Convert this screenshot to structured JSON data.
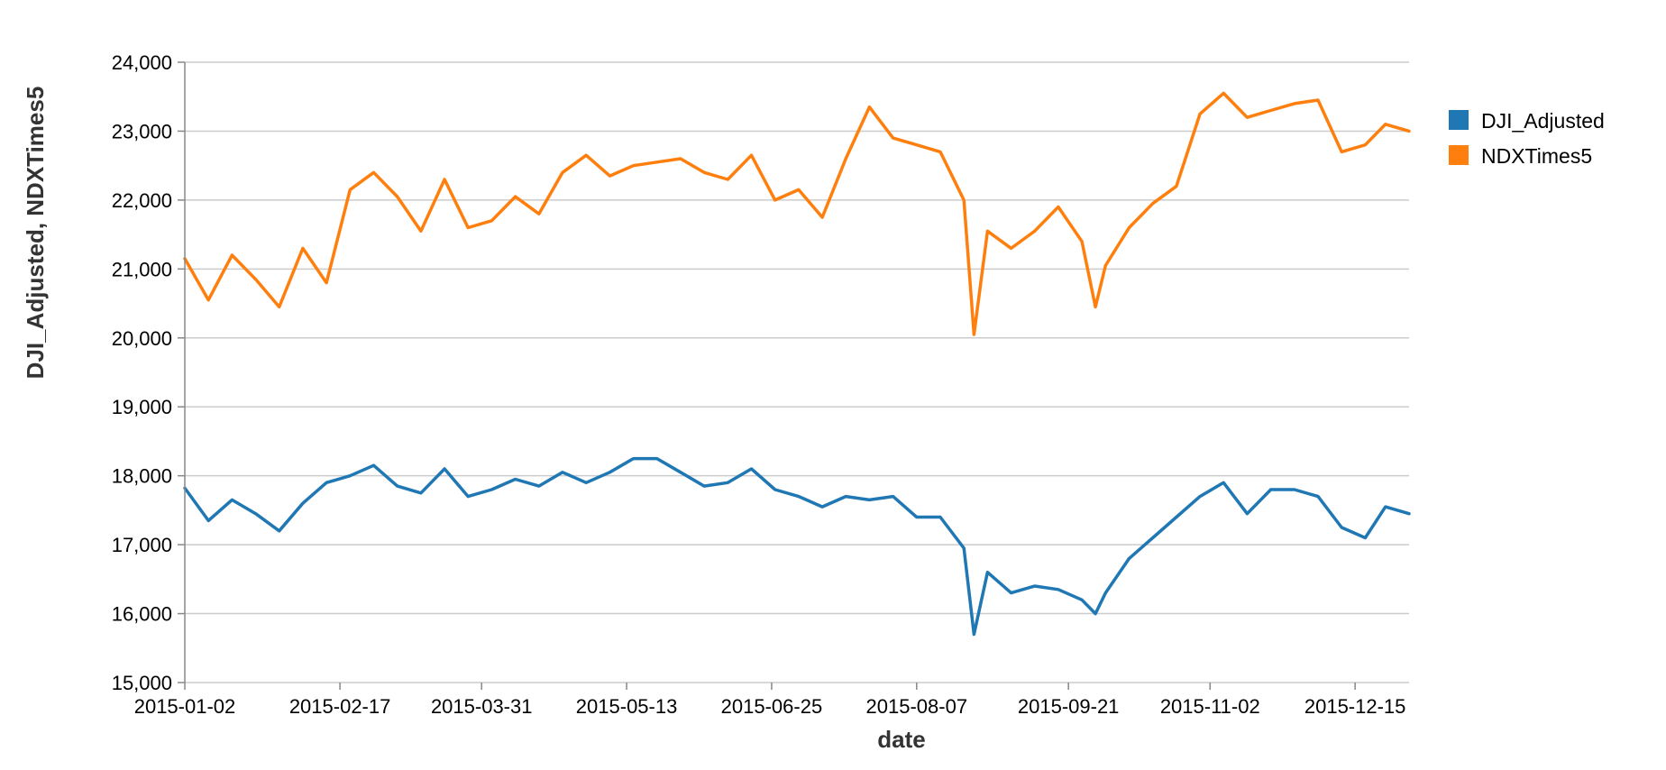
{
  "chart_data": {
    "type": "line",
    "xlabel": "date",
    "ylabel": "DJI_Adjusted, NDXTimes5",
    "ylim": [
      15000,
      24000
    ],
    "y_ticks": [
      15000,
      16000,
      17000,
      18000,
      19000,
      20000,
      21000,
      22000,
      23000,
      24000
    ],
    "y_tick_labels": [
      "15,000",
      "16,000",
      "17,000",
      "18,000",
      "19,000",
      "20,000",
      "21,000",
      "22,000",
      "23,000",
      "24,000"
    ],
    "x_tick_labels": [
      "2015-01-02",
      "2015-02-17",
      "2015-03-31",
      "2015-05-13",
      "2015-06-25",
      "2015-08-07",
      "2015-09-21",
      "2015-11-02",
      "2015-12-15"
    ],
    "grid": true,
    "legend_position": "right",
    "x": [
      "2015-01-02",
      "2015-01-09",
      "2015-01-16",
      "2015-01-23",
      "2015-01-30",
      "2015-02-06",
      "2015-02-13",
      "2015-02-20",
      "2015-02-27",
      "2015-03-06",
      "2015-03-13",
      "2015-03-20",
      "2015-03-27",
      "2015-04-03",
      "2015-04-10",
      "2015-04-17",
      "2015-04-24",
      "2015-05-01",
      "2015-05-08",
      "2015-05-15",
      "2015-05-22",
      "2015-05-29",
      "2015-06-05",
      "2015-06-12",
      "2015-06-19",
      "2015-06-26",
      "2015-07-03",
      "2015-07-10",
      "2015-07-17",
      "2015-07-24",
      "2015-07-31",
      "2015-08-07",
      "2015-08-14",
      "2015-08-21",
      "2015-08-24",
      "2015-08-28",
      "2015-09-04",
      "2015-09-11",
      "2015-09-18",
      "2015-09-25",
      "2015-09-29",
      "2015-10-02",
      "2015-10-09",
      "2015-10-16",
      "2015-10-23",
      "2015-10-30",
      "2015-11-06",
      "2015-11-13",
      "2015-11-20",
      "2015-11-27",
      "2015-12-04",
      "2015-12-11",
      "2015-12-18",
      "2015-12-24",
      "2015-12-31"
    ],
    "series": [
      {
        "name": "DJI_Adjusted",
        "color": "#1f77b4",
        "values": [
          17820,
          17350,
          17650,
          17450,
          17200,
          17600,
          17900,
          18000,
          18150,
          17850,
          17750,
          18100,
          17700,
          17800,
          17950,
          17850,
          18050,
          17900,
          18050,
          18250,
          18250,
          18050,
          17850,
          17900,
          18100,
          17800,
          17700,
          17550,
          17700,
          17650,
          17700,
          17400,
          17400,
          16950,
          15700,
          16600,
          16300,
          16400,
          16350,
          16200,
          16000,
          16300,
          16800,
          17100,
          17400,
          17700,
          17900,
          17450,
          17800,
          17800,
          17700,
          17250,
          17100,
          17550,
          17450
        ]
      },
      {
        "name": "NDXTimes5",
        "color": "#ff7f0e",
        "values": [
          21150,
          20550,
          21200,
          20850,
          20450,
          21300,
          20800,
          22150,
          22400,
          22050,
          21550,
          22300,
          21600,
          21700,
          22050,
          21800,
          22400,
          22650,
          22350,
          22500,
          22550,
          22600,
          22400,
          22300,
          22650,
          22000,
          22150,
          21750,
          22600,
          23350,
          22900,
          22800,
          22700,
          22000,
          20050,
          21550,
          21300,
          21550,
          21900,
          21400,
          20450,
          21050,
          21600,
          21950,
          22200,
          23250,
          23550,
          23200,
          23300,
          23400,
          23450,
          22700,
          22800,
          23100,
          23000
        ]
      }
    ]
  }
}
